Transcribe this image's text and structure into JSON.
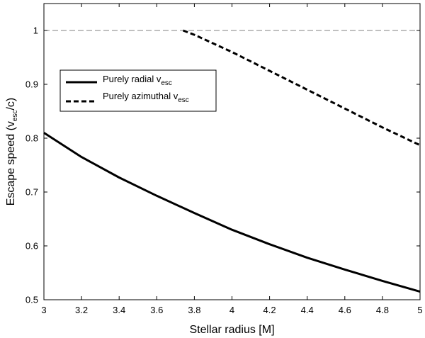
{
  "chart_data": {
    "type": "line",
    "xlabel": "Stellar radius [M]",
    "ylabel": {
      "main": "Escape speed (v",
      "sub": "esc",
      "end": "/c)"
    },
    "xlim": [
      3,
      5
    ],
    "ylim": [
      0.5,
      1.05
    ],
    "x_ticks": [
      "3",
      "3.2",
      "3.4",
      "3.6",
      "3.8",
      "4",
      "4.2",
      "4.4",
      "4.6",
      "4.8",
      "5"
    ],
    "y_ticks": [
      "0.5",
      "0.6",
      "0.7",
      "0.8",
      "0.9",
      "1"
    ],
    "grid": false,
    "legend_position": "upper-left",
    "reference_line": {
      "y": 1.0,
      "style": "dashed",
      "color": "#808080"
    },
    "series": [
      {
        "name": {
          "main": "Purely radial v",
          "sub": "esc"
        },
        "style": "solid",
        "color": "#000000",
        "x": [
          3.0,
          3.2,
          3.4,
          3.6,
          3.8,
          4.0,
          4.2,
          4.4,
          4.6,
          4.8,
          5.0
        ],
        "y": [
          0.81,
          0.765,
          0.727,
          0.693,
          0.661,
          0.63,
          0.603,
          0.578,
          0.556,
          0.535,
          0.515
        ]
      },
      {
        "name": {
          "main": "Purely azimuthal v",
          "sub": "esc"
        },
        "style": "dashed",
        "color": "#000000",
        "x": [
          3.74,
          3.8,
          3.9,
          4.0,
          4.2,
          4.4,
          4.6,
          4.8,
          5.0
        ],
        "y": [
          1.0,
          0.992,
          0.976,
          0.96,
          0.925,
          0.89,
          0.855,
          0.82,
          0.787
        ]
      }
    ]
  }
}
